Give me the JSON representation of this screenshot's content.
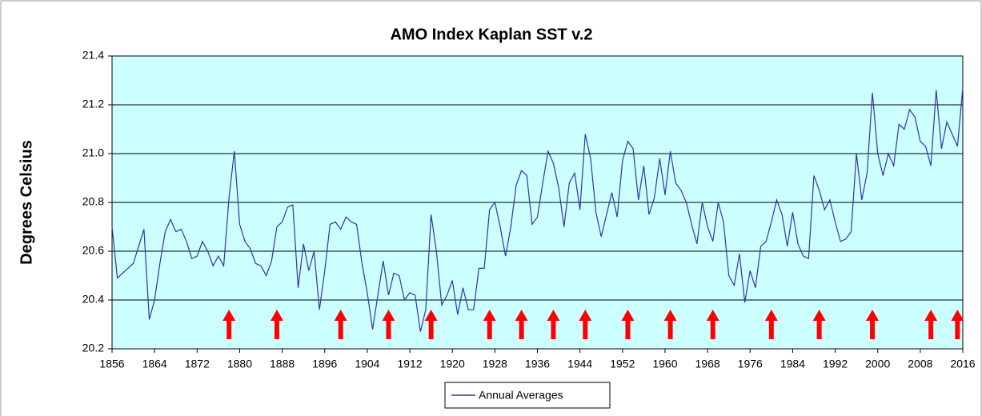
{
  "chart_data": {
    "type": "line",
    "title": "AMO Index Kaplan SST v.2",
    "ylabel": "Degrees Celsius",
    "x": [
      1856,
      1857,
      1858,
      1859,
      1860,
      1861,
      1862,
      1863,
      1864,
      1865,
      1866,
      1867,
      1868,
      1869,
      1870,
      1871,
      1872,
      1873,
      1874,
      1875,
      1876,
      1877,
      1878,
      1879,
      1880,
      1881,
      1882,
      1883,
      1884,
      1885,
      1886,
      1887,
      1888,
      1889,
      1890,
      1891,
      1892,
      1893,
      1894,
      1895,
      1896,
      1897,
      1898,
      1899,
      1900,
      1901,
      1902,
      1903,
      1904,
      1905,
      1906,
      1907,
      1908,
      1909,
      1910,
      1911,
      1912,
      1913,
      1914,
      1915,
      1916,
      1917,
      1918,
      1919,
      1920,
      1921,
      1922,
      1923,
      1924,
      1925,
      1926,
      1927,
      1928,
      1929,
      1930,
      1931,
      1932,
      1933,
      1934,
      1935,
      1936,
      1937,
      1938,
      1939,
      1940,
      1941,
      1942,
      1943,
      1944,
      1945,
      1946,
      1947,
      1948,
      1949,
      1950,
      1951,
      1952,
      1953,
      1954,
      1955,
      1956,
      1957,
      1958,
      1959,
      1960,
      1961,
      1962,
      1963,
      1964,
      1965,
      1966,
      1967,
      1968,
      1969,
      1970,
      1971,
      1972,
      1973,
      1974,
      1975,
      1976,
      1977,
      1978,
      1979,
      1980,
      1981,
      1982,
      1983,
      1984,
      1985,
      1986,
      1987,
      1988,
      1989,
      1990,
      1991,
      1992,
      1993,
      1994,
      1995,
      1996,
      1997,
      1998,
      1999,
      2000,
      2001,
      2002,
      2003,
      2004,
      2005,
      2006,
      2007,
      2008,
      2009,
      2010,
      2011,
      2012,
      2013,
      2014,
      2015,
      2016
    ],
    "series": [
      {
        "name": "Annual Averages",
        "color": "#3333aa",
        "values": [
          20.7,
          20.49,
          20.51,
          20.53,
          20.55,
          20.62,
          20.69,
          20.32,
          20.4,
          20.55,
          20.68,
          20.73,
          20.68,
          20.69,
          20.64,
          20.57,
          20.58,
          20.64,
          20.6,
          20.54,
          20.58,
          20.54,
          20.82,
          21.01,
          20.71,
          20.64,
          20.61,
          20.55,
          20.54,
          20.5,
          20.56,
          20.7,
          20.72,
          20.78,
          20.79,
          20.45,
          20.63,
          20.52,
          20.6,
          20.36,
          20.52,
          20.71,
          20.72,
          20.69,
          20.74,
          20.72,
          20.71,
          20.55,
          20.43,
          20.28,
          20.42,
          20.56,
          20.42,
          20.51,
          20.5,
          20.4,
          20.43,
          20.42,
          20.27,
          20.36,
          20.75,
          20.6,
          20.38,
          20.42,
          20.48,
          20.34,
          20.45,
          20.36,
          20.36,
          20.53,
          20.53,
          20.77,
          20.8,
          20.7,
          20.58,
          20.7,
          20.87,
          20.93,
          20.91,
          20.71,
          20.74,
          20.88,
          21.01,
          20.96,
          20.86,
          20.7,
          20.88,
          20.92,
          20.77,
          21.08,
          20.98,
          20.76,
          20.66,
          20.75,
          20.84,
          20.74,
          20.97,
          21.05,
          21.02,
          20.81,
          20.95,
          20.75,
          20.82,
          20.98,
          20.83,
          21.01,
          20.88,
          20.85,
          20.8,
          20.71,
          20.63,
          20.8,
          20.7,
          20.64,
          20.8,
          20.72,
          20.5,
          20.46,
          20.59,
          20.39,
          20.52,
          20.45,
          20.62,
          20.64,
          20.72,
          20.81,
          20.75,
          20.62,
          20.76,
          20.63,
          20.58,
          20.57,
          20.91,
          20.85,
          20.77,
          20.81,
          20.72,
          20.64,
          20.65,
          20.68,
          21.0,
          20.81,
          20.92,
          21.25,
          21.0,
          20.91,
          21.0,
          20.95,
          21.12,
          21.1,
          21.18,
          21.15,
          21.05,
          21.03,
          20.95,
          21.26,
          21.02,
          21.13,
          21.08,
          21.03,
          21.27
        ]
      }
    ],
    "arrows": {
      "x": [
        1878,
        1887,
        1899,
        1908,
        1916,
        1927,
        1933,
        1939,
        1945,
        1953,
        1961,
        1969,
        1980,
        1989,
        1999,
        2010,
        2015
      ],
      "color": "#ff0000"
    },
    "xlim": [
      1856,
      2016
    ],
    "xticks": [
      1856,
      1864,
      1872,
      1880,
      1888,
      1896,
      1904,
      1912,
      1920,
      1928,
      1936,
      1944,
      1952,
      1960,
      1968,
      1976,
      1984,
      1992,
      2000,
      2008,
      2016
    ],
    "ylim": [
      20.2,
      21.4
    ],
    "yticks": [
      20.2,
      20.4,
      20.6,
      20.8,
      {
        "value": 21,
        "label": "21.0"
      },
      21.2,
      21.4
    ],
    "grid": true,
    "background": "#ccffff",
    "legend": "bottom"
  }
}
